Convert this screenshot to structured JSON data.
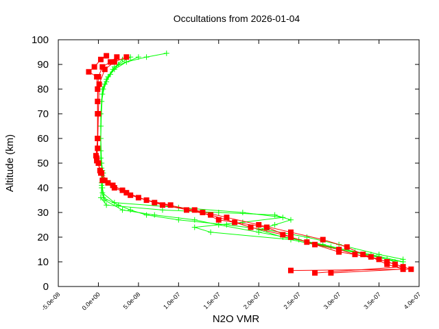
{
  "chart_data": {
    "type": "line",
    "title": "Occultations from 2026-01-04",
    "xlabel": "N2O VMR",
    "ylabel": "Altitude (km)",
    "xlim": [
      -5e-08,
      4e-07
    ],
    "ylim": [
      0,
      100
    ],
    "grid": false,
    "xticks": [
      "-5.0e-08",
      "0.0e+00",
      "5.0e-08",
      "1.0e-07",
      "1.5e-07",
      "2.0e-07",
      "2.5e-07",
      "3.0e-07",
      "3.5e-07",
      "4.0e-07"
    ],
    "xtick_values": [
      -5e-08,
      0,
      5e-08,
      1e-07,
      1.5e-07,
      2e-07,
      2.5e-07,
      3e-07,
      3.5e-07,
      4e-07
    ],
    "yticks": [
      "0",
      "10",
      "20",
      "30",
      "40",
      "50",
      "60",
      "70",
      "80",
      "90",
      "100"
    ],
    "ytick_values": [
      0,
      10,
      20,
      30,
      40,
      50,
      60,
      70,
      80,
      90,
      100
    ],
    "colors": {
      "green_profiles": "#00ff00",
      "red_profiles": "#ff0000"
    },
    "markers": {
      "green_profiles": "plus",
      "red_profiles": "square"
    },
    "series": [
      {
        "group": "green_profiles",
        "points": [
          [
            8.5e-08,
            94.5
          ],
          [
            6e-08,
            93
          ],
          [
            3.5e-08,
            91
          ],
          [
            2e-08,
            88
          ],
          [
            1.2e-08,
            85
          ],
          [
            6e-09,
            80
          ],
          [
            4e-09,
            75
          ],
          [
            3e-09,
            65
          ],
          [
            3e-09,
            55
          ],
          [
            4e-09,
            48
          ],
          [
            6e-09,
            44
          ],
          [
            4e-09,
            40
          ],
          [
            3e-09,
            36
          ],
          [
            1e-08,
            33
          ],
          [
            8e-08,
            31
          ],
          [
            1.5e-07,
            30
          ],
          [
            2.2e-07,
            29
          ],
          [
            2.4e-07,
            27
          ],
          [
            2.2e-07,
            25
          ],
          [
            2e-07,
            23
          ],
          [
            2.3e-07,
            20
          ],
          [
            2.8e-07,
            17
          ],
          [
            3.2e-07,
            14
          ],
          [
            3.6e-07,
            11
          ],
          [
            3.8e-07,
            10
          ]
        ]
      },
      {
        "group": "green_profiles",
        "points": [
          [
            4e-08,
            93
          ],
          [
            2.5e-08,
            90
          ],
          [
            1.5e-08,
            86
          ],
          [
            8e-09,
            82
          ],
          [
            4e-09,
            75
          ],
          [
            3e-09,
            60
          ],
          [
            4e-09,
            50
          ],
          [
            5e-09,
            45
          ],
          [
            5e-09,
            40
          ],
          [
            8e-09,
            35
          ],
          [
            3e-08,
            31
          ],
          [
            7e-08,
            29
          ],
          [
            1.2e-07,
            27
          ],
          [
            1.5e-07,
            25
          ],
          [
            2e-07,
            22
          ],
          [
            2.5e-07,
            19
          ],
          [
            2.9e-07,
            16
          ],
          [
            3.4e-07,
            13
          ],
          [
            3.8e-07,
            10
          ]
        ]
      },
      {
        "group": "green_profiles",
        "points": [
          [
            3e-08,
            92
          ],
          [
            1.8e-08,
            88
          ],
          [
            1e-08,
            84
          ],
          [
            5e-09,
            80
          ],
          [
            3e-09,
            70
          ],
          [
            3e-09,
            55
          ],
          [
            5e-09,
            47
          ],
          [
            4e-09,
            42
          ],
          [
            5e-09,
            38
          ],
          [
            2e-08,
            34
          ],
          [
            1e-07,
            32
          ],
          [
            1.8e-07,
            30
          ],
          [
            2.3e-07,
            28
          ],
          [
            1.8e-07,
            26
          ],
          [
            1.2e-07,
            24
          ],
          [
            1.4e-07,
            22
          ],
          [
            2.4e-07,
            19
          ],
          [
            3e-07,
            15
          ],
          [
            3.5e-07,
            12
          ],
          [
            3.7e-07,
            10
          ]
        ]
      },
      {
        "group": "green_profiles",
        "points": [
          [
            5e-08,
            93
          ],
          [
            2e-08,
            89
          ],
          [
            1e-08,
            83
          ],
          [
            5e-09,
            78
          ],
          [
            3e-09,
            65
          ],
          [
            3e-09,
            52
          ],
          [
            6e-09,
            46
          ],
          [
            4e-09,
            41
          ],
          [
            6e-09,
            36
          ],
          [
            2.5e-08,
            33
          ],
          [
            4e-08,
            31
          ],
          [
            6e-08,
            29
          ],
          [
            1e-07,
            27
          ],
          [
            1.6e-07,
            25
          ],
          [
            2.1e-07,
            23
          ],
          [
            2.6e-07,
            20
          ],
          [
            3e-07,
            17
          ],
          [
            3.5e-07,
            13
          ],
          [
            3.8e-07,
            11
          ]
        ]
      },
      {
        "group": "red_profiles",
        "points": [
          [
            1e-08,
            93.5
          ],
          [
            3e-09,
            92
          ],
          [
            -5e-09,
            89
          ],
          [
            -1.2e-08,
            87
          ],
          [
            -2e-09,
            85
          ],
          [
            -1e-09,
            80
          ],
          [
            -1e-09,
            70
          ],
          [
            -1e-09,
            60
          ],
          [
            -3e-09,
            53
          ],
          [
            0,
            50
          ],
          [
            3e-09,
            46
          ],
          [
            8e-09,
            43
          ],
          [
            1.8e-08,
            41
          ],
          [
            3.5e-08,
            38
          ],
          [
            6e-08,
            35
          ],
          [
            9e-08,
            33
          ],
          [
            1.1e-07,
            31
          ],
          [
            1.4e-07,
            29
          ],
          [
            1.7e-07,
            26
          ],
          [
            1.9e-07,
            24
          ],
          [
            2.3e-07,
            21
          ],
          [
            2.6e-07,
            18
          ],
          [
            3e-07,
            15
          ],
          [
            3.2e-07,
            13
          ],
          [
            3.5e-07,
            11
          ],
          [
            3.7e-07,
            9
          ],
          [
            3.9e-07,
            7
          ],
          [
            2.4e-07,
            6.5
          ]
        ]
      },
      {
        "group": "red_profiles",
        "points": [
          [
            2.3e-08,
            93
          ],
          [
            1.5e-08,
            91
          ],
          [
            5e-09,
            89
          ],
          [
            0,
            85
          ],
          [
            -1e-09,
            75
          ],
          [
            -1e-09,
            60
          ],
          [
            -2e-09,
            52
          ],
          [
            2e-09,
            47
          ],
          [
            5e-09,
            43
          ],
          [
            2e-08,
            40
          ],
          [
            4e-08,
            37
          ],
          [
            7e-08,
            34
          ],
          [
            1.2e-07,
            31
          ],
          [
            1.6e-07,
            28
          ],
          [
            2e-07,
            25
          ],
          [
            2.4e-07,
            22
          ],
          [
            2.8e-07,
            19
          ],
          [
            3.1e-07,
            16
          ],
          [
            3.3e-07,
            13
          ],
          [
            3.6e-07,
            10
          ],
          [
            3.8e-07,
            8
          ],
          [
            2.7e-07,
            5.5
          ]
        ]
      },
      {
        "group": "red_profiles",
        "points": [
          [
            3.5e-08,
            93
          ],
          [
            2e-08,
            91
          ],
          [
            8e-09,
            88
          ],
          [
            1e-09,
            82
          ],
          [
            0,
            70
          ],
          [
            -1e-09,
            56
          ],
          [
            -2e-09,
            51
          ],
          [
            4e-09,
            46
          ],
          [
            1.2e-08,
            42
          ],
          [
            3e-08,
            39
          ],
          [
            5e-08,
            36
          ],
          [
            8e-08,
            33
          ],
          [
            1.3e-07,
            30
          ],
          [
            1.5e-07,
            27
          ],
          [
            2.1e-07,
            24
          ],
          [
            2.4e-07,
            20
          ],
          [
            2.7e-07,
            17
          ],
          [
            3e-07,
            14
          ],
          [
            3.4e-07,
            12
          ],
          [
            3.6e-07,
            9
          ],
          [
            3.8e-07,
            7
          ],
          [
            2.9e-07,
            5.5
          ]
        ]
      }
    ]
  }
}
